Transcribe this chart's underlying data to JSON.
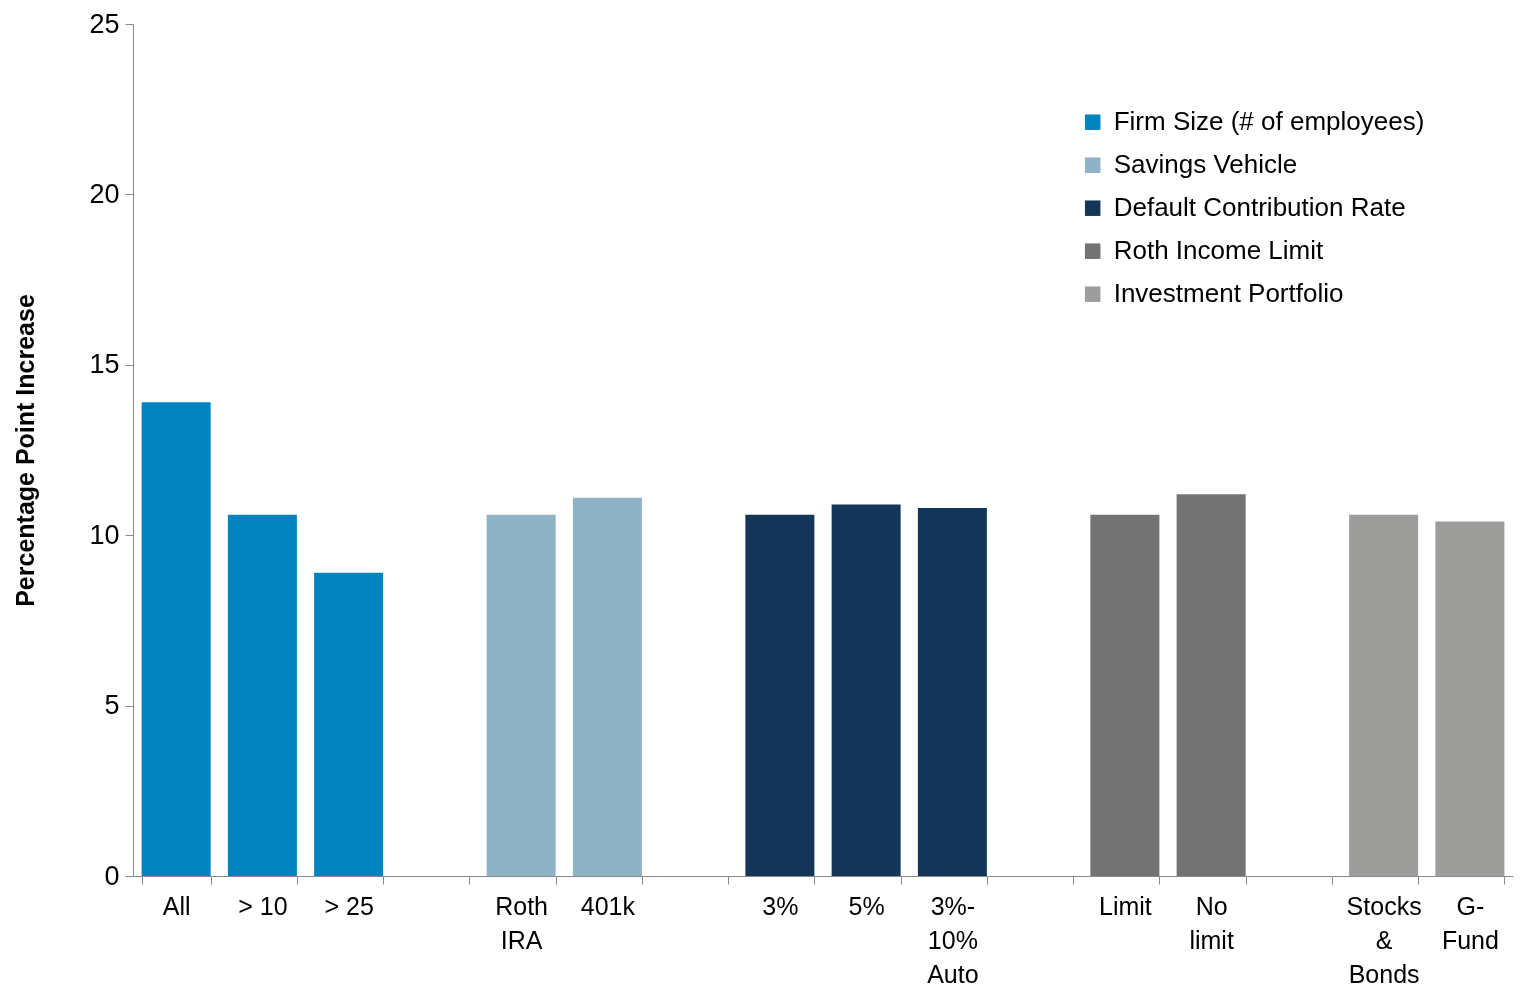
{
  "chart_data": {
    "type": "bar",
    "ylabel": "Percentage Point Increase",
    "categories": [
      "All",
      "> 10",
      "> 25",
      null,
      "Roth IRA",
      "401k",
      null,
      "3%",
      "5%",
      "3%-10% Auto",
      null,
      "Limit",
      "No limit",
      null,
      "Stocks & Bonds",
      "G-Fund"
    ],
    "series": [
      {
        "name": "Firm Size (# of employees)",
        "color": "#0083be",
        "values": [
          13.9,
          10.6,
          8.9,
          null,
          null,
          null,
          null,
          null,
          null,
          null,
          null,
          null,
          null,
          null,
          null,
          null
        ]
      },
      {
        "name": "Savings Vehicle",
        "color": "#8fb2c7",
        "values": [
          null,
          null,
          null,
          null,
          10.6,
          11.1,
          null,
          null,
          null,
          null,
          null,
          null,
          null,
          null,
          null,
          null
        ]
      },
      {
        "name": "Default Contribution Rate",
        "color": "#133558",
        "values": [
          null,
          null,
          null,
          null,
          null,
          null,
          null,
          10.6,
          10.9,
          10.8,
          null,
          null,
          null,
          null,
          null,
          null
        ]
      },
      {
        "name": "Roth Income Limit",
        "color": "#737373",
        "values": [
          null,
          null,
          null,
          null,
          null,
          null,
          null,
          null,
          null,
          null,
          null,
          10.6,
          11.2,
          null,
          null,
          null
        ]
      },
      {
        "name": "Investment Portfolio",
        "color": "#9d9e9c",
        "values": [
          null,
          null,
          null,
          null,
          null,
          null,
          null,
          null,
          null,
          null,
          null,
          null,
          null,
          null,
          10.6,
          10.4
        ]
      }
    ],
    "ylim": [
      0,
      25
    ],
    "yticks": [
      0,
      5,
      10,
      15,
      20,
      25
    ],
    "grid": false,
    "legend": "top right"
  }
}
